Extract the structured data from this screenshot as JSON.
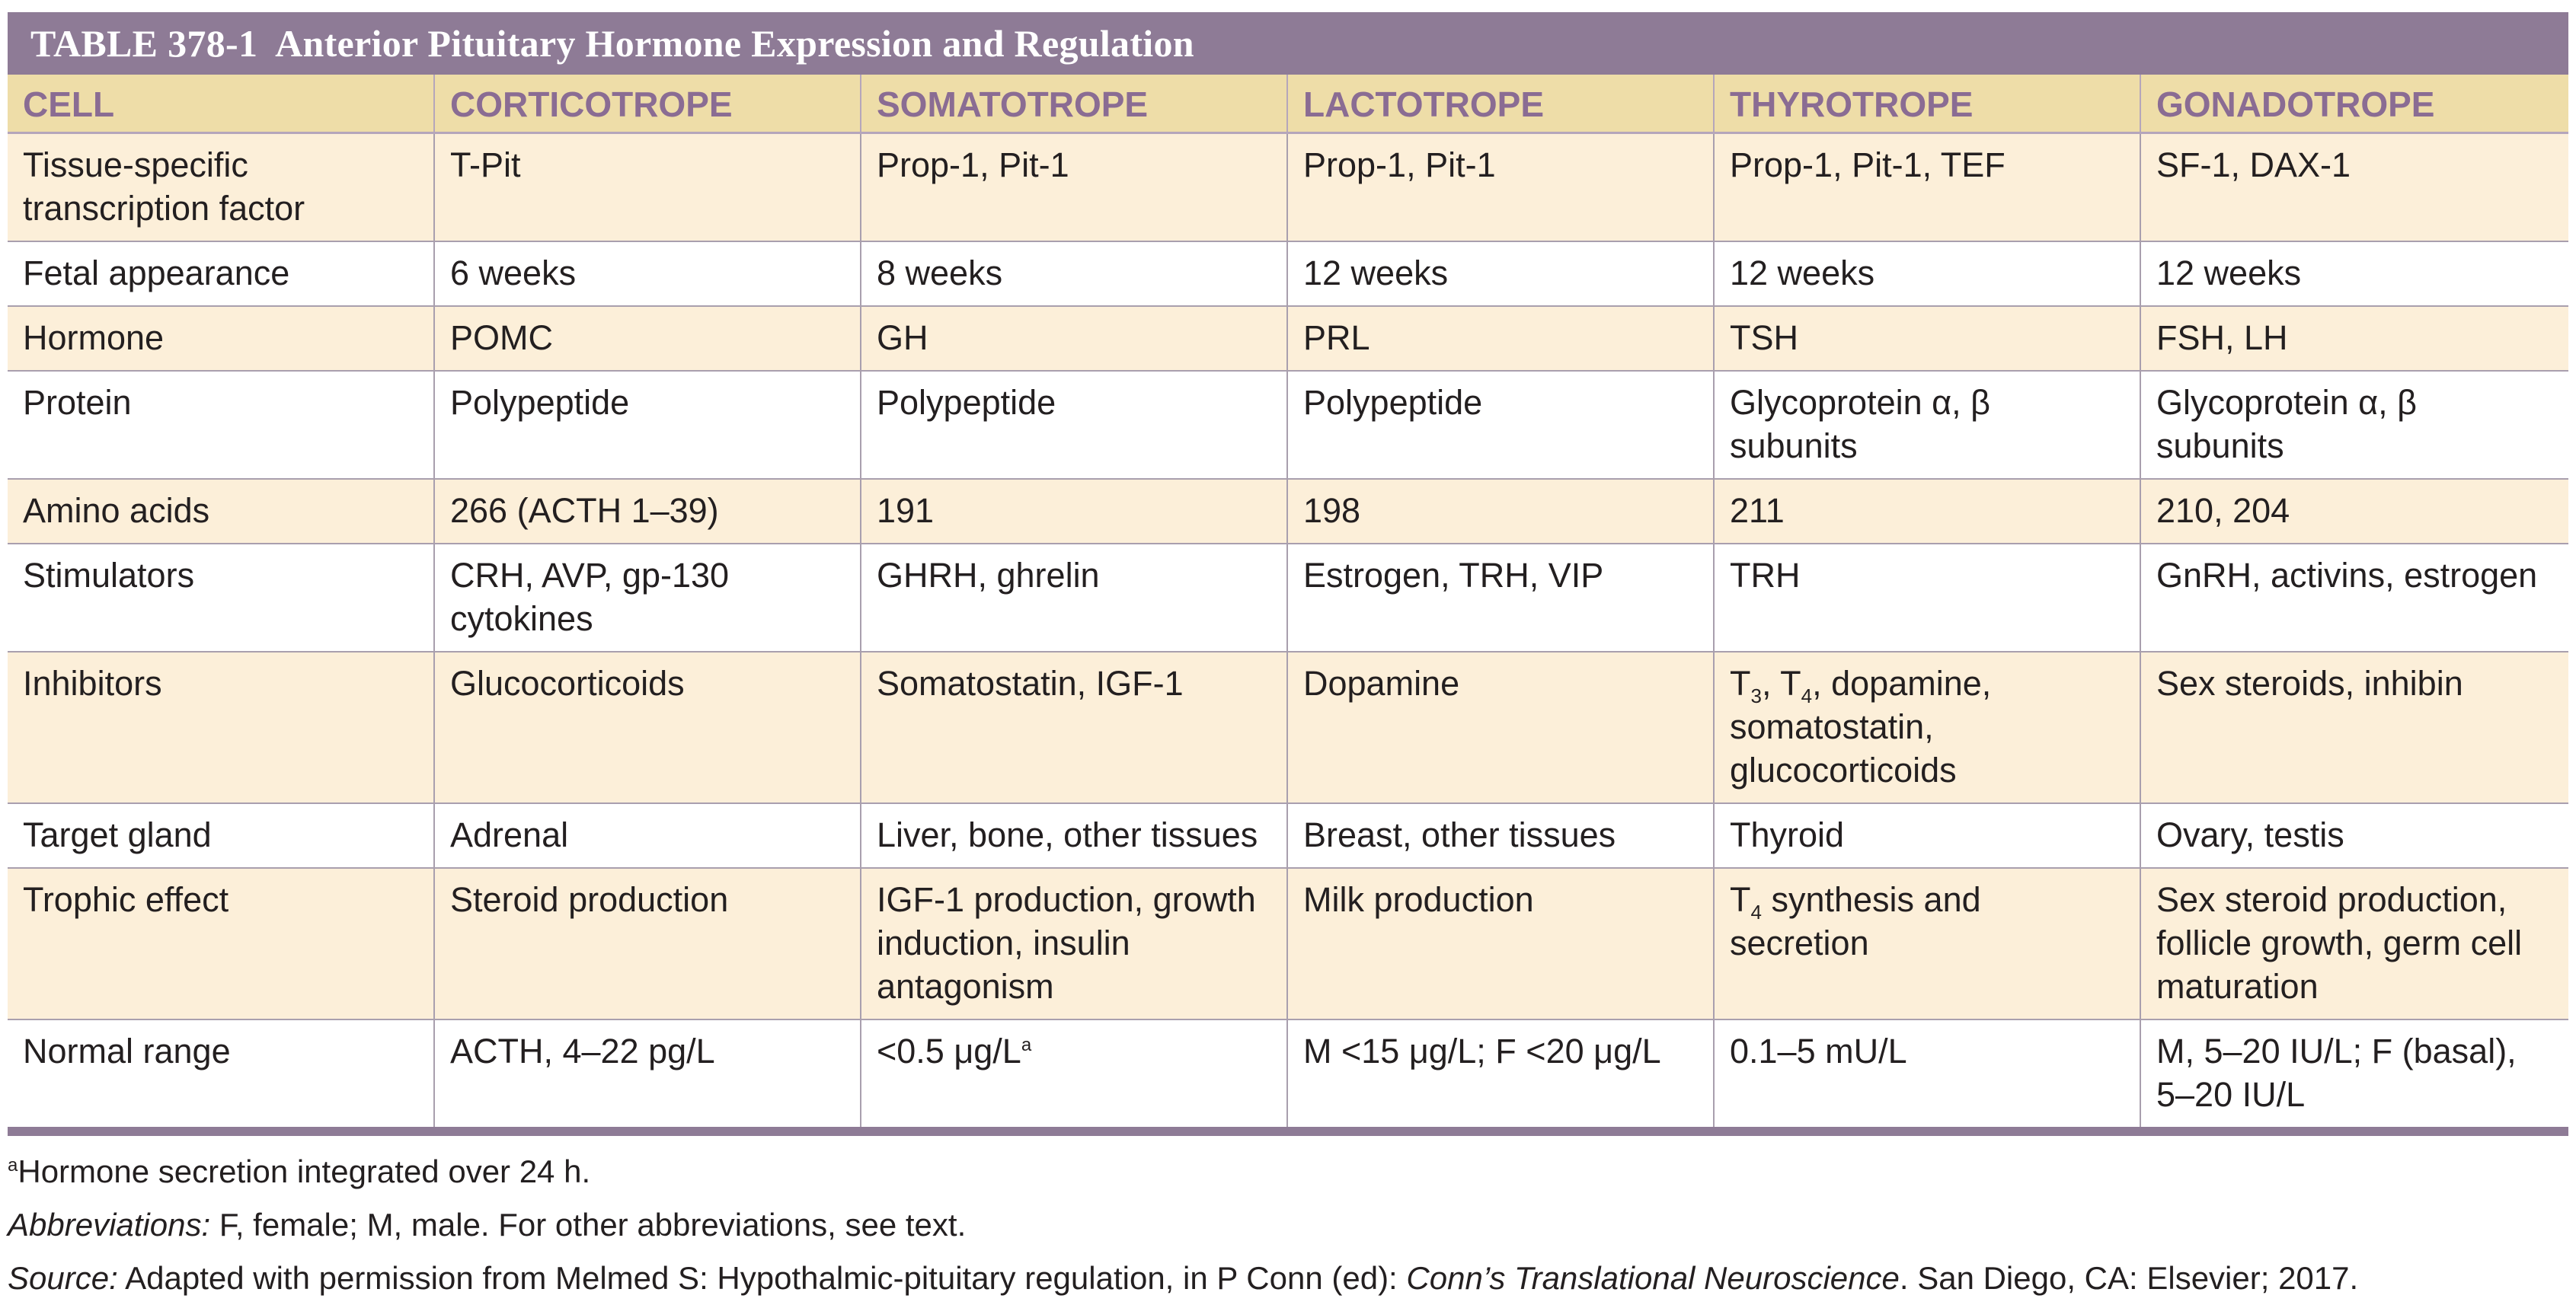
{
  "title": "TABLE 378-1  Anterior Pituitary Hormone Expression and Regulation",
  "headers": [
    "CELL",
    "CORTICOTROPE",
    "SOMATOTROPE",
    "LACTOTROPE",
    "THYROTROPE",
    "GONADOTROPE"
  ],
  "rows": [
    {
      "label": "Tissue-specific transcription factor",
      "cells": [
        "T-Pit",
        "Prop-1, Pit-1",
        "Prop-1, Pit-1",
        "Prop-1, Pit-1, TEF",
        "SF-1, DAX-1"
      ]
    },
    {
      "label": "Fetal appearance",
      "cells": [
        "6 weeks",
        "8 weeks",
        "12 weeks",
        "12 weeks",
        "12 weeks"
      ]
    },
    {
      "label": "Hormone",
      "cells": [
        "POMC",
        "GH",
        "PRL",
        "TSH",
        "FSH, LH"
      ]
    },
    {
      "label": "Protein",
      "cells": [
        "Polypeptide",
        "Polypeptide",
        "Polypeptide",
        "Glycoprotein α, β subunits",
        "Glycoprotein α, β subunits"
      ]
    },
    {
      "label": "Amino acids",
      "cells": [
        "266 (ACTH 1–39)",
        "191",
        "198",
        "211",
        "210, 204"
      ]
    },
    {
      "label": "Stimulators",
      "cells": [
        "CRH, AVP, gp-130 cytokines",
        "GHRH, ghrelin",
        "Estrogen, TRH, VIP",
        "TRH",
        "GnRH, activins, estrogen"
      ]
    },
    {
      "label": "Inhibitors",
      "cells": [
        "Glucocorticoids",
        "Somatostatin, IGF-1",
        "Dopamine",
        "",
        "Sex steroids, inhibin"
      ]
    },
    {
      "label": "Target gland",
      "cells": [
        "Adrenal",
        "Liver, bone, other tissues",
        "Breast, other tissues",
        "Thyroid",
        "Ovary, testis"
      ]
    },
    {
      "label": "Trophic effect",
      "cells": [
        "Steroid production",
        "IGF-1 production, growth induction, insulin antagonism",
        "Milk production",
        "",
        "Sex steroid production, follicle growth, germ cell maturation"
      ]
    },
    {
      "label": "Normal range",
      "cells": [
        "ACTH, 4–22 pg/L",
        "",
        "M <15 μg/L; F <20 μg/L",
        "0.1–5 mU/L",
        "M, 5–20 IU/L; F (basal), 5–20 IU/L"
      ]
    }
  ],
  "rich": {
    "inhibitors_thyrotrope": {
      "t": "T",
      "sub3": "3",
      "sep": ", T",
      "sub4": "4",
      "rest": ", dopamine, somatostatin, glucocorticoids"
    },
    "trophic_thyrotrope": {
      "t": "T",
      "sub4": "4",
      "rest": " synthesis and secretion"
    },
    "normal_somatotrope": {
      "text": "<0.5 μg/L",
      "sup": "a"
    }
  },
  "footnotes": {
    "note_a": {
      "sup": "a",
      "text": "Hormone secretion integrated over 24 h."
    },
    "abbreviations": {
      "label": "Abbreviations:",
      "text": " F, female; M, male. For other abbreviations, see text."
    },
    "source": {
      "label": "Source:",
      "text1": " Adapted with permission from Melmed S: Hypothalmic-pituitary regulation, in P Conn (ed): ",
      "book": "Conn’s Translational Neuroscience",
      "text2": ". San Diego, CA: Elsevier; 2017."
    }
  },
  "colors": {
    "title_bar": "#8e7b96",
    "header_bg": "#eedda8",
    "header_text": "#8a6c93",
    "band": "#fcefd9"
  }
}
